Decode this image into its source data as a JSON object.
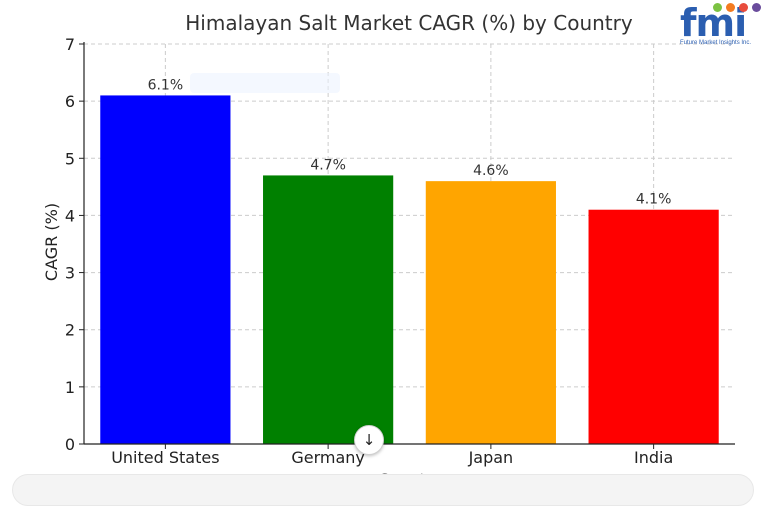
{
  "chart_data": {
    "type": "bar",
    "title": "Himalayan Salt Market CAGR (%) by Country",
    "xlabel": "Country",
    "ylabel": "CAGR (%)",
    "ylim": [
      0,
      7
    ],
    "yticks": [
      "0",
      "1",
      "2",
      "3",
      "4",
      "5",
      "6",
      "7"
    ],
    "categories": [
      "United States",
      "Germany",
      "Japan",
      "India"
    ],
    "values": [
      6.1,
      4.7,
      4.6,
      4.1
    ],
    "value_labels": [
      "6.1%",
      "4.7%",
      "4.6%",
      "4.1%"
    ],
    "colors": [
      "#0000ff",
      "#008000",
      "#ffa500",
      "#ff0000"
    ],
    "grid": true,
    "legend": "none"
  },
  "logo": {
    "letters": "fmi",
    "tagline": "Future Market Insights Inc.",
    "brand_color": "#2b5eb0",
    "dot_colors": [
      "#7cc242",
      "#f47b20",
      "#e84c3d",
      "#6a4c9c"
    ]
  },
  "overlay": {
    "scroll_icon": "arrow-down-icon",
    "scroll_glyph": "↓"
  }
}
